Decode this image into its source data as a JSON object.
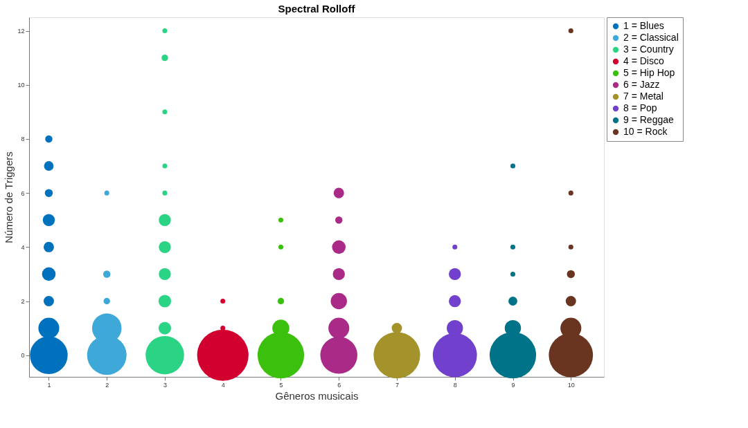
{
  "chart_data": {
    "type": "bubble",
    "title": "Spectral Rolloff",
    "xlabel": "Gêneros musicais",
    "ylabel": "Número de Triggers",
    "xlim": [
      0.66,
      10.57
    ],
    "ylim": [
      -0.8,
      12.5
    ],
    "xticks": [
      1,
      2,
      3,
      4,
      5,
      6,
      7,
      8,
      9,
      10
    ],
    "yticks": [
      0,
      2,
      4,
      6,
      8,
      10,
      12
    ],
    "grid": false,
    "legend": "top right",
    "marker": "circle",
    "series": [
      {
        "name": "1 = Blues",
        "color": "#0072bd",
        "x": [
          1,
          1,
          1,
          1,
          1,
          1,
          1,
          1,
          1
        ],
        "values": [
          0,
          1,
          2,
          3,
          4,
          5,
          6,
          7,
          8
        ],
        "sizes": [
          0.54,
          0.165,
          0.041,
          0.07,
          0.041,
          0.055,
          0.024,
          0.035,
          0.02
        ]
      },
      {
        "name": "2 = Classical",
        "color": "#3ea9d9",
        "x": [
          2,
          2,
          2,
          2,
          2
        ],
        "values": [
          0,
          1,
          2,
          3,
          6
        ],
        "sizes": [
          0.59,
          0.33,
          0.016,
          0.02,
          0.009
        ]
      },
      {
        "name": "3 = Country",
        "color": "#2ad484",
        "x": [
          3,
          3,
          3,
          3,
          3,
          3,
          3,
          3,
          3,
          3,
          3
        ],
        "values": [
          0,
          1,
          2,
          3,
          4,
          5,
          6,
          7,
          9,
          11,
          12
        ],
        "sizes": [
          0.56,
          0.06,
          0.06,
          0.055,
          0.055,
          0.055,
          0.009,
          0.009,
          0.009,
          0.016,
          0.009
        ]
      },
      {
        "name": "4 = Disco",
        "color": "#d1002f",
        "x": [
          4,
          4,
          4
        ],
        "values": [
          0,
          1,
          2
        ],
        "sizes": [
          1,
          0.009,
          0.009
        ]
      },
      {
        "name": "5 = Hip Hop",
        "color": "#3cc00e",
        "x": [
          5,
          5,
          5,
          5,
          5
        ],
        "values": [
          0,
          1,
          2,
          4,
          5
        ],
        "sizes": [
          0.82,
          0.11,
          0.016,
          0.009,
          0.009
        ]
      },
      {
        "name": "6 = Jazz",
        "color": "#aa2a88",
        "x": [
          6,
          6,
          6,
          6,
          6,
          6,
          6
        ],
        "values": [
          0,
          1,
          2,
          3,
          4,
          5,
          6
        ],
        "sizes": [
          0.52,
          0.165,
          0.1,
          0.055,
          0.07,
          0.02,
          0.041
        ]
      },
      {
        "name": "7 = Metal",
        "color": "#a4922a",
        "x": [
          7,
          7
        ],
        "values": [
          0,
          1
        ],
        "sizes": [
          0.82,
          0.041
        ]
      },
      {
        "name": "8 = Pop",
        "color": "#7140cc",
        "x": [
          8,
          8,
          8,
          8,
          8
        ],
        "values": [
          0,
          1,
          2,
          3,
          4
        ],
        "sizes": [
          0.74,
          0.1,
          0.055,
          0.055,
          0.009
        ]
      },
      {
        "name": "9 = Reggae",
        "color": "#007388",
        "x": [
          9,
          9,
          9,
          9,
          9,
          9
        ],
        "values": [
          0,
          1,
          2,
          3,
          4,
          7
        ],
        "sizes": [
          0.82,
          0.1,
          0.03,
          0.009,
          0.009,
          0.009
        ]
      },
      {
        "name": "10 = Rock",
        "color": "#6a3520",
        "x": [
          10,
          10,
          10,
          10,
          10,
          10,
          10
        ],
        "values": [
          0,
          1,
          2,
          3,
          4,
          6,
          12
        ],
        "sizes": [
          0.74,
          0.165,
          0.041,
          0.024,
          0.009,
          0.009,
          0.009
        ]
      }
    ]
  }
}
